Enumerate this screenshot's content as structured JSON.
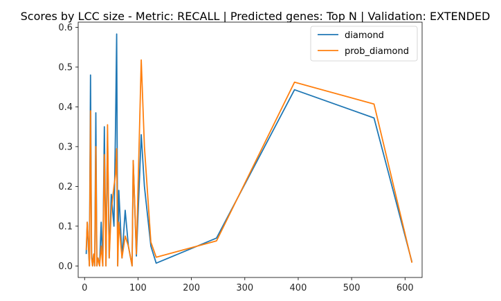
{
  "chart_data": {
    "type": "line",
    "title": "Scores by LCC size - Metric: RECALL | Predicted genes: Top N | Validation: EXTENDED",
    "xlabel": "",
    "ylabel": "",
    "xlim": [
      -12,
      632
    ],
    "ylim": [
      -0.029,
      0.613
    ],
    "xticks": [
      0,
      100,
      200,
      300,
      400,
      500,
      600
    ],
    "yticks": [
      0.0,
      0.1,
      0.2,
      0.3,
      0.4,
      0.5,
      0.6
    ],
    "ytick_labels": [
      "0.0",
      "0.1",
      "0.2",
      "0.3",
      "0.4",
      "0.5",
      "0.6"
    ],
    "grid": false,
    "legend": "top-right",
    "series": [
      {
        "name": "diamond",
        "color": "#1f77b4",
        "points": [
          [
            3,
            0.03
          ],
          [
            5,
            0.11
          ],
          [
            7,
            0.05
          ],
          [
            9,
            0.0
          ],
          [
            11,
            0.48
          ],
          [
            13,
            0.03
          ],
          [
            15,
            0.0
          ],
          [
            17,
            0.03
          ],
          [
            19,
            0.0
          ],
          [
            21,
            0.385
          ],
          [
            23,
            0.0
          ],
          [
            25,
            0.02
          ],
          [
            28,
            0.0
          ],
          [
            31,
            0.11
          ],
          [
            34,
            0.0
          ],
          [
            37,
            0.35
          ],
          [
            40,
            0.0
          ],
          [
            43,
            0.33
          ],
          [
            46,
            0.02
          ],
          [
            50,
            0.18
          ],
          [
            55,
            0.1
          ],
          [
            58,
            0.355
          ],
          [
            60,
            0.583
          ],
          [
            62,
            0.0
          ],
          [
            64,
            0.19
          ],
          [
            70,
            0.02
          ],
          [
            76,
            0.14
          ],
          [
            82,
            0.05
          ],
          [
            89,
            0.0
          ],
          [
            91,
            0.265
          ],
          [
            97,
            0.025
          ],
          [
            106,
            0.33
          ],
          [
            112,
            0.2
          ],
          [
            124,
            0.05
          ],
          [
            134,
            0.007
          ],
          [
            247,
            0.07
          ],
          [
            393,
            0.443
          ],
          [
            542,
            0.372
          ],
          [
            613,
            0.01
          ]
        ]
      },
      {
        "name": "prob_diamond",
        "color": "#ff7f0e",
        "points": [
          [
            3,
            0.04
          ],
          [
            5,
            0.11
          ],
          [
            7,
            0.06
          ],
          [
            9,
            0.0
          ],
          [
            11,
            0.39
          ],
          [
            13,
            0.02
          ],
          [
            15,
            0.0
          ],
          [
            17,
            0.03
          ],
          [
            19,
            0.0
          ],
          [
            21,
            0.3
          ],
          [
            23,
            0.0
          ],
          [
            25,
            0.02
          ],
          [
            28,
            0.0
          ],
          [
            31,
            0.05
          ],
          [
            34,
            0.0
          ],
          [
            37,
            0.28
          ],
          [
            40,
            0.0
          ],
          [
            43,
            0.355
          ],
          [
            46,
            0.02
          ],
          [
            50,
            0.14
          ],
          [
            55,
            0.2
          ],
          [
            58,
            0.23
          ],
          [
            60,
            0.295
          ],
          [
            62,
            0.0
          ],
          [
            64,
            0.11
          ],
          [
            70,
            0.02
          ],
          [
            76,
            0.075
          ],
          [
            82,
            0.05
          ],
          [
            89,
            0.0
          ],
          [
            91,
            0.265
          ],
          [
            97,
            0.03
          ],
          [
            106,
            0.518
          ],
          [
            112,
            0.3
          ],
          [
            124,
            0.06
          ],
          [
            134,
            0.022
          ],
          [
            247,
            0.063
          ],
          [
            393,
            0.462
          ],
          [
            542,
            0.407
          ],
          [
            613,
            0.008
          ]
        ]
      }
    ]
  }
}
